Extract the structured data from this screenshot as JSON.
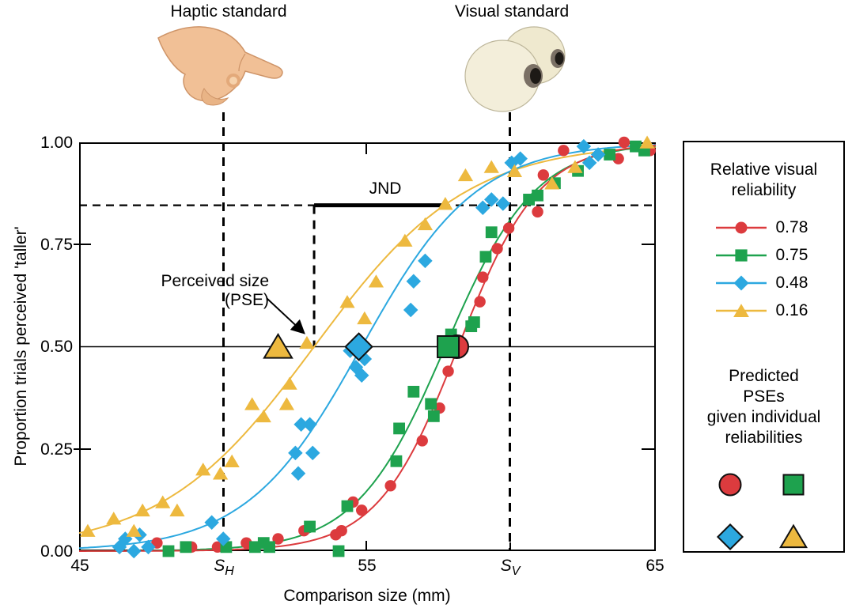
{
  "figure": {
    "haptic_standard_label": "Haptic standard",
    "visual_standard_label": "Visual standard"
  },
  "axes": {
    "x_label": "Comparison size (mm)",
    "y_label": "Proportion trials perceived 'taller'",
    "x_tick_labels": [
      "45",
      "55",
      "65"
    ],
    "y_tick_labels": [
      "1.00",
      "0.75",
      "0.50",
      "0.25",
      "0.00"
    ],
    "haptic_standard_symbol": "S",
    "haptic_standard_subscript": "H",
    "visual_standard_symbol": "S",
    "visual_standard_subscript": "V"
  },
  "annotations": {
    "jnd_label": "JND",
    "pse_label_line1": "Perceived size",
    "pse_label_line2": "(PSE)"
  },
  "legend": {
    "reliability_title_line1": "Relative visual",
    "reliability_title_line2": "reliability",
    "items": [
      {
        "label": "0.78",
        "color": "#DC3B3E",
        "marker": "circle"
      },
      {
        "label": "0.75",
        "color": "#1EA24E",
        "marker": "square"
      },
      {
        "label": "0.48",
        "color": "#2CA8E0",
        "marker": "diamond"
      },
      {
        "label": "0.16",
        "color": "#EDB93F",
        "marker": "triangle"
      }
    ],
    "predicted_title_line1": "Predicted",
    "predicted_title_line2": "PSEs",
    "predicted_title_line3": "given individual",
    "predicted_title_line4": "reliabilities"
  },
  "chart_data": {
    "type": "scatter",
    "title": "Visual-haptic size discrimination psychometric functions",
    "xlabel": "Comparison size (mm)",
    "ylabel": "Proportion trials perceived 'taller'",
    "xlim": [
      45,
      65
    ],
    "ylim": [
      0,
      1
    ],
    "x_ticks": [
      45,
      55,
      65
    ],
    "y_ticks": [
      0,
      0.25,
      0.5,
      0.75,
      1
    ],
    "grid": false,
    "legend_position": "right",
    "haptic_standard_mm": 50,
    "visual_standard_mm": 60,
    "half_line_proportion": 0.5,
    "jnd_line_proportion": 0.84,
    "observed_pse_mm": 53.15,
    "jnd": {
      "from_mm": 53.15,
      "to_mm": 57.6,
      "at_proportion": 0.84
    },
    "series": [
      {
        "name": "0.78",
        "relative_visual_reliability": 0.78,
        "marker": "circle",
        "color": "#DC3B3E",
        "predicted_pse_mm": 58.1,
        "curve": {
          "pse_mm": 58.15,
          "slope_mm": 1.4
        },
        "points": [
          [
            47.7,
            0.02
          ],
          [
            48.9,
            0.01
          ],
          [
            49.8,
            0.01
          ],
          [
            50.8,
            0.02
          ],
          [
            51.9,
            0.03
          ],
          [
            52.8,
            0.05
          ],
          [
            53.9,
            0.04
          ],
          [
            54.1,
            0.05
          ],
          [
            54.5,
            0.12
          ],
          [
            54.8,
            0.1
          ],
          [
            55.8,
            0.16
          ],
          [
            56.9,
            0.27
          ],
          [
            57.5,
            0.35
          ],
          [
            57.8,
            0.44
          ],
          [
            58.9,
            0.61
          ],
          [
            59.0,
            0.67
          ],
          [
            59.5,
            0.74
          ],
          [
            59.9,
            0.79
          ],
          [
            60.9,
            0.83
          ],
          [
            61.1,
            0.92
          ],
          [
            61.8,
            0.98
          ],
          [
            63.7,
            0.96
          ],
          [
            63.9,
            1.0
          ],
          [
            64.8,
            0.98
          ]
        ]
      },
      {
        "name": "0.75",
        "relative_visual_reliability": 0.75,
        "marker": "square",
        "color": "#1EA24E",
        "predicted_pse_mm": 57.8,
        "curve": {
          "pse_mm": 57.7,
          "slope_mm": 1.55
        },
        "points": [
          [
            48.1,
            0.0
          ],
          [
            48.7,
            0.01
          ],
          [
            50.1,
            0.01
          ],
          [
            51.1,
            0.01
          ],
          [
            51.4,
            0.02
          ],
          [
            51.6,
            0.01
          ],
          [
            53.0,
            0.06
          ],
          [
            54.0,
            0.0
          ],
          [
            54.3,
            0.11
          ],
          [
            56.0,
            0.22
          ],
          [
            56.1,
            0.3
          ],
          [
            56.6,
            0.39
          ],
          [
            57.2,
            0.36
          ],
          [
            57.3,
            0.33
          ],
          [
            57.9,
            0.53
          ],
          [
            58.6,
            0.55
          ],
          [
            58.7,
            0.56
          ],
          [
            59.1,
            0.72
          ],
          [
            59.3,
            0.78
          ],
          [
            60.6,
            0.86
          ],
          [
            60.9,
            0.87
          ],
          [
            61.5,
            0.9
          ],
          [
            62.3,
            0.93
          ],
          [
            63.4,
            0.97
          ],
          [
            64.3,
            0.99
          ],
          [
            64.6,
            0.98
          ]
        ]
      },
      {
        "name": "0.48",
        "relative_visual_reliability": 0.48,
        "marker": "diamond",
        "color": "#2CA8E0",
        "predicted_pse_mm": 54.7,
        "curve": {
          "pse_mm": 54.8,
          "slope_mm": 2.0
        },
        "points": [
          [
            46.4,
            0.01
          ],
          [
            46.6,
            0.03
          ],
          [
            46.9,
            0.0
          ],
          [
            47.1,
            0.04
          ],
          [
            47.4,
            0.01
          ],
          [
            49.6,
            0.07
          ],
          [
            50.0,
            0.03
          ],
          [
            52.5,
            0.24
          ],
          [
            52.6,
            0.19
          ],
          [
            52.7,
            0.31
          ],
          [
            53.0,
            0.31
          ],
          [
            53.1,
            0.24
          ],
          [
            54.4,
            0.49
          ],
          [
            54.6,
            0.45
          ],
          [
            54.8,
            0.43
          ],
          [
            54.9,
            0.47
          ],
          [
            56.5,
            0.59
          ],
          [
            56.6,
            0.66
          ],
          [
            57.0,
            0.71
          ],
          [
            59.0,
            0.84
          ],
          [
            59.3,
            0.86
          ],
          [
            59.7,
            0.85
          ],
          [
            60.0,
            0.95
          ],
          [
            60.3,
            0.96
          ],
          [
            62.5,
            0.99
          ],
          [
            62.7,
            0.95
          ],
          [
            63.0,
            0.97
          ]
        ]
      },
      {
        "name": "0.16",
        "relative_visual_reliability": 0.16,
        "marker": "triangle",
        "color": "#EDB93F",
        "predicted_pse_mm": 51.9,
        "curve": {
          "pse_mm": 53.15,
          "slope_mm": 2.65
        },
        "points": [
          [
            45.3,
            0.05
          ],
          [
            46.2,
            0.08
          ],
          [
            46.9,
            0.05
          ],
          [
            47.2,
            0.1
          ],
          [
            47.9,
            0.12
          ],
          [
            48.4,
            0.1
          ],
          [
            49.3,
            0.2
          ],
          [
            49.9,
            0.19
          ],
          [
            50.3,
            0.22
          ],
          [
            51.0,
            0.36
          ],
          [
            51.4,
            0.33
          ],
          [
            52.2,
            0.36
          ],
          [
            52.3,
            0.41
          ],
          [
            52.9,
            0.51
          ],
          [
            54.3,
            0.61
          ],
          [
            54.9,
            0.57
          ],
          [
            55.3,
            0.66
          ],
          [
            56.3,
            0.76
          ],
          [
            57.0,
            0.8
          ],
          [
            57.7,
            0.85
          ],
          [
            58.4,
            0.92
          ],
          [
            59.3,
            0.94
          ],
          [
            60.1,
            0.93
          ],
          [
            61.4,
            0.9
          ],
          [
            62.2,
            0.94
          ],
          [
            64.7,
            1.0
          ]
        ]
      }
    ]
  }
}
